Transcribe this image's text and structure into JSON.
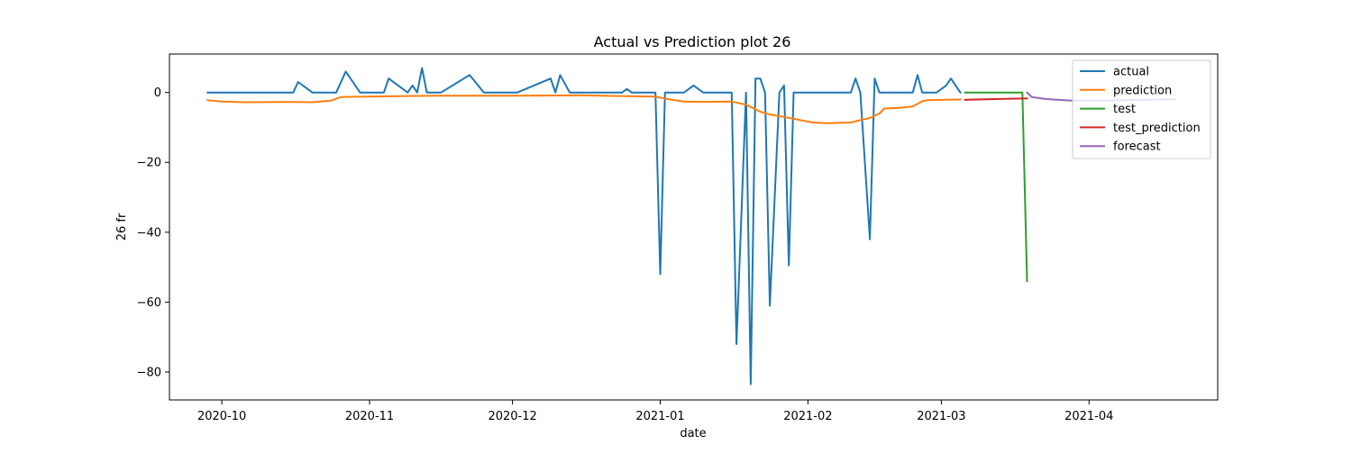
{
  "chart_data": {
    "type": "line",
    "title": "Actual vs Prediction plot 26",
    "xlabel": "date",
    "ylabel": "26 fr",
    "x_type": "date",
    "xlim": [
      "2020-09-20",
      "2021-04-28"
    ],
    "ylim": [
      -88,
      11
    ],
    "x_ticks": [
      "2020-10-01",
      "2020-11-01",
      "2020-12-01",
      "2021-01-01",
      "2021-02-01",
      "2021-03-01",
      "2021-04-01"
    ],
    "x_tick_labels": [
      "2020-10",
      "2020-11",
      "2020-12",
      "2021-01",
      "2021-02",
      "2021-03",
      "2021-04"
    ],
    "y_ticks": [
      0,
      -20,
      -40,
      -60,
      -80
    ],
    "y_tick_labels": [
      "0",
      "−20",
      "−40",
      "−60",
      "−80"
    ],
    "grid": false,
    "legend_position": "top-right",
    "series": [
      {
        "name": "actual",
        "color": "#1f77b4",
        "points": [
          [
            "2020-09-28",
            0
          ],
          [
            "2020-10-16",
            0
          ],
          [
            "2020-10-17",
            3
          ],
          [
            "2020-10-20",
            0
          ],
          [
            "2020-10-25",
            0
          ],
          [
            "2020-10-27",
            6
          ],
          [
            "2020-10-30",
            0
          ],
          [
            "2020-11-04",
            0
          ],
          [
            "2020-11-05",
            4
          ],
          [
            "2020-11-09",
            0
          ],
          [
            "2020-11-10",
            2
          ],
          [
            "2020-11-11",
            0
          ],
          [
            "2020-11-12",
            7
          ],
          [
            "2020-11-13",
            0
          ],
          [
            "2020-11-16",
            0
          ],
          [
            "2020-11-22",
            5
          ],
          [
            "2020-11-25",
            0
          ],
          [
            "2020-12-02",
            0
          ],
          [
            "2020-12-09",
            4
          ],
          [
            "2020-12-10",
            0
          ],
          [
            "2020-12-11",
            5
          ],
          [
            "2020-12-13",
            0
          ],
          [
            "2020-12-24",
            0
          ],
          [
            "2020-12-25",
            1
          ],
          [
            "2020-12-26",
            0
          ],
          [
            "2020-12-31",
            0
          ],
          [
            "2021-01-01",
            -52
          ],
          [
            "2021-01-02",
            0
          ],
          [
            "2021-01-06",
            0
          ],
          [
            "2021-01-08",
            2
          ],
          [
            "2021-01-10",
            0
          ],
          [
            "2021-01-16",
            0
          ],
          [
            "2021-01-17",
            -72
          ],
          [
            "2021-01-19",
            0
          ],
          [
            "2021-01-20",
            -83.5
          ],
          [
            "2021-01-21",
            4
          ],
          [
            "2021-01-22",
            4
          ],
          [
            "2021-01-23",
            0
          ],
          [
            "2021-01-24",
            -61
          ],
          [
            "2021-01-26",
            0
          ],
          [
            "2021-01-27",
            2
          ],
          [
            "2021-01-28",
            -49.5
          ],
          [
            "2021-01-29",
            0
          ],
          [
            "2021-02-10",
            0
          ],
          [
            "2021-02-11",
            4
          ],
          [
            "2021-02-12",
            0
          ],
          [
            "2021-02-14",
            -42
          ],
          [
            "2021-02-15",
            4
          ],
          [
            "2021-02-16",
            0
          ],
          [
            "2021-02-23",
            0
          ],
          [
            "2021-02-24",
            5
          ],
          [
            "2021-02-25",
            0
          ],
          [
            "2021-02-28",
            0
          ],
          [
            "2021-03-02",
            2
          ],
          [
            "2021-03-03",
            4
          ],
          [
            "2021-03-05",
            0
          ]
        ]
      },
      {
        "name": "prediction",
        "color": "#ff7f0e",
        "points": [
          [
            "2020-09-28",
            -2.2
          ],
          [
            "2020-10-01",
            -2.6
          ],
          [
            "2020-10-06",
            -2.8
          ],
          [
            "2020-10-15",
            -2.7
          ],
          [
            "2020-10-20",
            -2.8
          ],
          [
            "2020-10-24",
            -2.3
          ],
          [
            "2020-10-26",
            -1.3
          ],
          [
            "2020-11-05",
            -1.1
          ],
          [
            "2020-11-15",
            -0.9
          ],
          [
            "2020-12-01",
            -0.9
          ],
          [
            "2020-12-15",
            -0.8
          ],
          [
            "2020-12-22",
            -1.0
          ],
          [
            "2020-12-31",
            -1.2
          ],
          [
            "2021-01-03",
            -2.0
          ],
          [
            "2021-01-06",
            -2.6
          ],
          [
            "2021-01-10",
            -2.7
          ],
          [
            "2021-01-16",
            -2.6
          ],
          [
            "2021-01-19",
            -3.5
          ],
          [
            "2021-01-22",
            -5.5
          ],
          [
            "2021-01-24",
            -6.3
          ],
          [
            "2021-01-27",
            -7.0
          ],
          [
            "2021-01-30",
            -7.8
          ],
          [
            "2021-02-02",
            -8.6
          ],
          [
            "2021-02-05",
            -8.8
          ],
          [
            "2021-02-10",
            -8.6
          ],
          [
            "2021-02-12",
            -7.9
          ],
          [
            "2021-02-14",
            -7.3
          ],
          [
            "2021-02-16",
            -6.0
          ],
          [
            "2021-02-17",
            -4.6
          ],
          [
            "2021-02-20",
            -4.4
          ],
          [
            "2021-02-23",
            -4.0
          ],
          [
            "2021-02-25",
            -2.5
          ],
          [
            "2021-02-26",
            -2.2
          ],
          [
            "2021-03-05",
            -2.0
          ]
        ]
      },
      {
        "name": "test",
        "color": "#2ca02c",
        "points": [
          [
            "2021-03-06",
            0
          ],
          [
            "2021-03-18",
            0
          ],
          [
            "2021-03-19",
            -54
          ]
        ]
      },
      {
        "name": "test_prediction",
        "color": "#d62728",
        "points": [
          [
            "2021-03-06",
            -2.1
          ],
          [
            "2021-03-12",
            -1.9
          ],
          [
            "2021-03-19",
            -1.7
          ]
        ]
      },
      {
        "name": "forecast",
        "color": "#9467bd",
        "points": [
          [
            "2021-03-19",
            0
          ],
          [
            "2021-03-20",
            -1.3
          ],
          [
            "2021-03-23",
            -1.9
          ],
          [
            "2021-03-28",
            -2.3
          ],
          [
            "2021-04-05",
            -2.3
          ],
          [
            "2021-04-12",
            -2.1
          ],
          [
            "2021-04-19",
            -2.0
          ]
        ]
      }
    ]
  }
}
